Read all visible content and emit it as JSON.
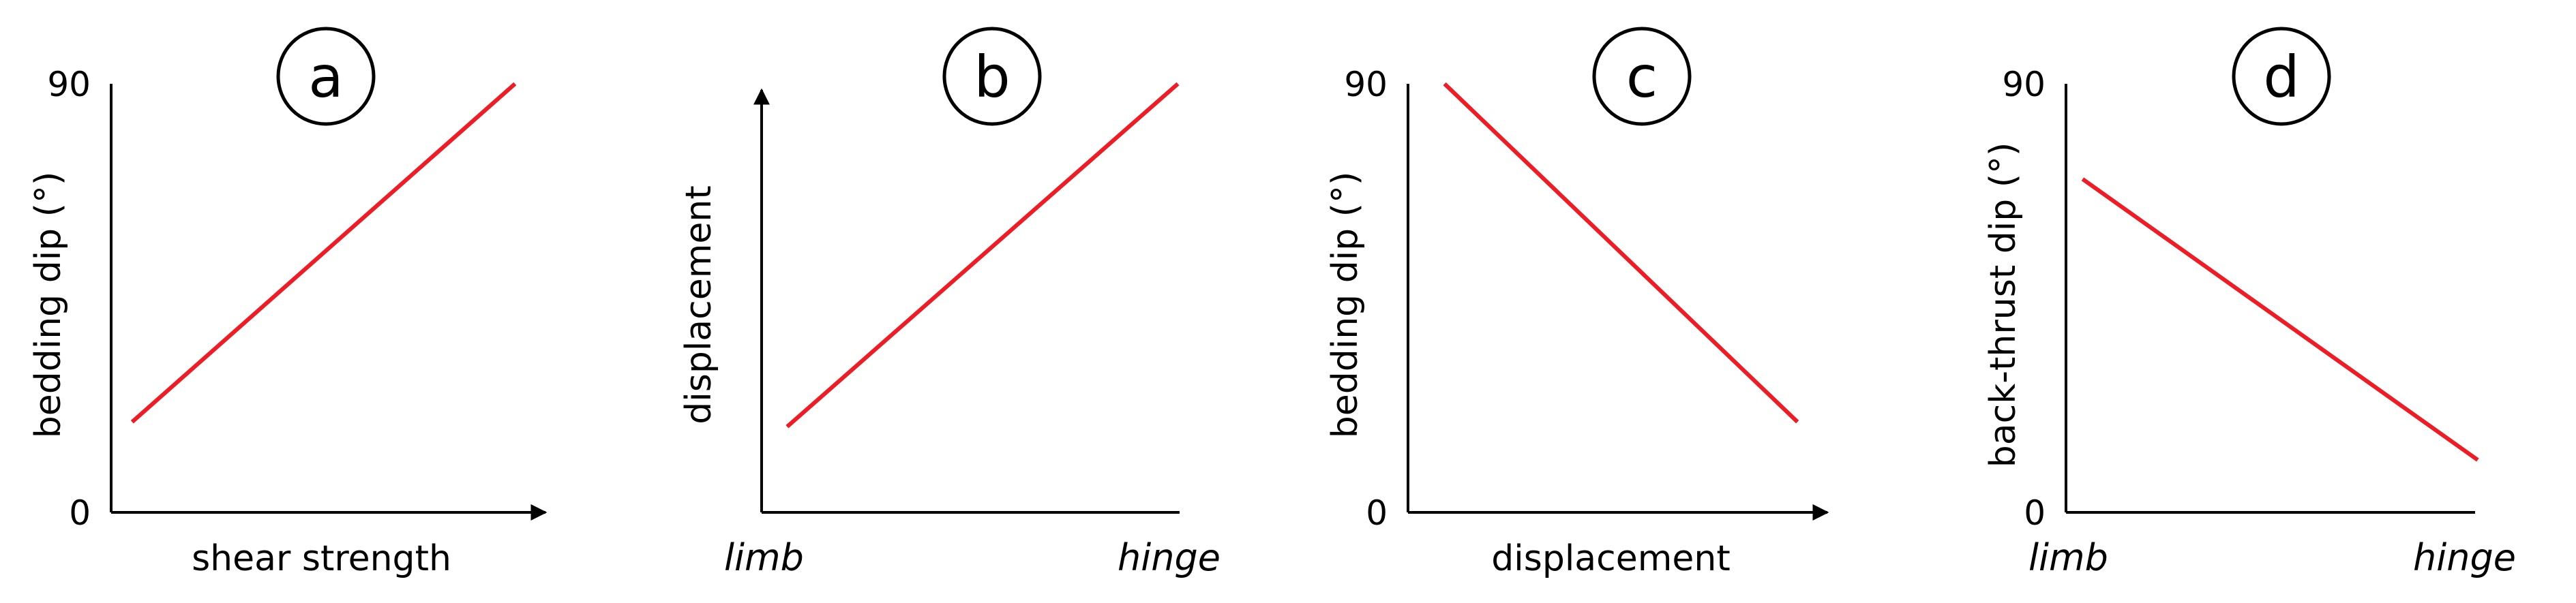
{
  "figure": {
    "colors": {
      "line": "#ee1c24",
      "axis": "#000000"
    }
  },
  "chart_data": [
    {
      "panel": "a",
      "type": "line",
      "xlabel": "shear strength",
      "ylabel": "bedding dip (°)",
      "y_ticks": [
        "0",
        "90"
      ],
      "ylim": [
        0,
        90
      ],
      "xlim": [
        0,
        1
      ],
      "x_arrow": true,
      "y_arrow": false,
      "series": [
        {
          "x": [
            0.05,
            0.96
          ],
          "y": [
            19,
            90
          ]
        }
      ]
    },
    {
      "panel": "b",
      "type": "line",
      "xlabel": "",
      "ylabel": "displacement",
      "x_categories": [
        "limb",
        "hinge"
      ],
      "ylim": [
        0,
        1
      ],
      "xlim": [
        0,
        1
      ],
      "x_arrow": false,
      "y_arrow": true,
      "series": [
        {
          "x": [
            0.06,
            0.98
          ],
          "y": [
            0.2,
            1.0
          ]
        }
      ]
    },
    {
      "panel": "c",
      "type": "line",
      "xlabel": "displacement",
      "ylabel": "bedding dip (°)",
      "y_ticks": [
        "90",
        "0"
      ],
      "ylim": [
        0,
        90
      ],
      "xlim": [
        0,
        1
      ],
      "x_arrow": true,
      "y_arrow": false,
      "series": [
        {
          "x": [
            0.09,
            0.96
          ],
          "y": [
            90,
            19
          ]
        }
      ]
    },
    {
      "panel": "d",
      "type": "line",
      "xlabel": "",
      "ylabel": "back-thrust dip (°)",
      "x_categories": [
        "limb",
        "hinge"
      ],
      "y_ticks": [
        "90",
        "0"
      ],
      "ylim": [
        0,
        90
      ],
      "xlim": [
        0,
        1
      ],
      "x_arrow": false,
      "y_arrow": false,
      "series": [
        {
          "x": [
            0.04,
            0.99
          ],
          "y": [
            70,
            11
          ]
        }
      ]
    }
  ]
}
